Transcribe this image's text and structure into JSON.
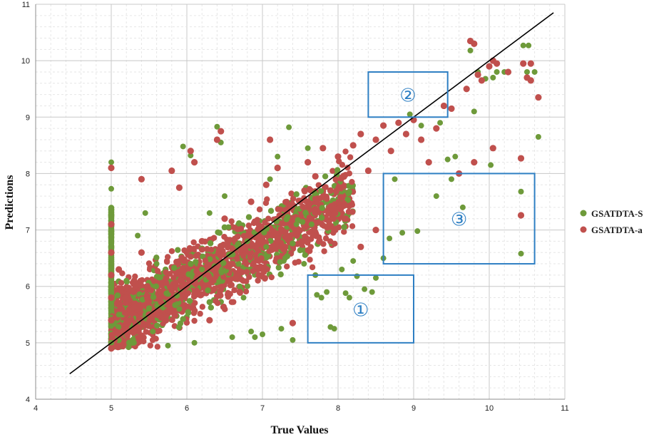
{
  "chart_data": {
    "type": "scatter",
    "xlabel": "True Values",
    "ylabel": "Predictions",
    "xlim": [
      4,
      11
    ],
    "ylim": [
      4,
      11
    ],
    "xticks": [
      "4",
      "5",
      "6",
      "7",
      "8",
      "9",
      "10",
      "11"
    ],
    "yticks": [
      "4",
      "5",
      "6",
      "7",
      "8",
      "9",
      "10",
      "11"
    ],
    "grid": true,
    "minor_grid": true,
    "legend_position": "right",
    "reference_line": {
      "x": [
        4.45,
        10.85
      ],
      "y": [
        4.45,
        10.85
      ],
      "color": "#000000"
    },
    "series": [
      {
        "name": "GSATDTA-S",
        "color": "#6e9a3a",
        "points": [
          [
            5.0,
            8.2
          ],
          [
            5.0,
            7.73
          ],
          [
            5.0,
            7.25
          ],
          [
            5.0,
            6.95
          ],
          [
            5.0,
            6.5
          ],
          [
            5.0,
            6.1
          ],
          [
            5.0,
            5.7
          ],
          [
            5.0,
            5.3
          ],
          [
            5.0,
            5.0
          ],
          [
            5.1,
            5.5
          ],
          [
            5.2,
            6.1
          ],
          [
            5.3,
            5.0
          ],
          [
            5.35,
            6.9
          ],
          [
            5.45,
            7.3
          ],
          [
            5.55,
            5.2
          ],
          [
            5.6,
            6.4
          ],
          [
            5.75,
            4.95
          ],
          [
            5.9,
            5.6
          ],
          [
            5.95,
            8.48
          ],
          [
            6.05,
            8.32
          ],
          [
            6.1,
            5.0
          ],
          [
            6.2,
            6.3
          ],
          [
            6.3,
            7.3
          ],
          [
            6.4,
            8.83
          ],
          [
            6.45,
            8.55
          ],
          [
            6.5,
            7.6
          ],
          [
            6.55,
            7.05
          ],
          [
            6.6,
            5.1
          ],
          [
            6.7,
            6.0
          ],
          [
            6.75,
            5.8
          ],
          [
            6.8,
            6.8
          ],
          [
            6.85,
            5.2
          ],
          [
            6.9,
            5.1
          ],
          [
            7.0,
            5.15
          ],
          [
            7.05,
            6.7
          ],
          [
            7.1,
            7.9
          ],
          [
            7.2,
            8.3
          ],
          [
            7.25,
            5.25
          ],
          [
            7.3,
            6.5
          ],
          [
            7.35,
            8.82
          ],
          [
            7.4,
            5.05
          ],
          [
            7.45,
            7.1
          ],
          [
            7.55,
            6.4
          ],
          [
            7.6,
            8.45
          ],
          [
            7.65,
            7.1
          ],
          [
            7.7,
            6.2
          ],
          [
            7.72,
            5.85
          ],
          [
            7.78,
            5.8
          ],
          [
            7.85,
            5.9
          ],
          [
            7.9,
            5.28
          ],
          [
            7.95,
            5.25
          ],
          [
            8.05,
            6.3
          ],
          [
            8.1,
            5.88
          ],
          [
            8.15,
            5.8
          ],
          [
            8.2,
            6.45
          ],
          [
            8.25,
            6.18
          ],
          [
            8.35,
            5.95
          ],
          [
            8.45,
            5.9
          ],
          [
            8.5,
            6.15
          ],
          [
            8.6,
            6.5
          ],
          [
            8.68,
            6.85
          ],
          [
            8.75,
            7.9
          ],
          [
            8.85,
            6.95
          ],
          [
            8.95,
            9.05
          ],
          [
            9.05,
            6.98
          ],
          [
            9.1,
            8.85
          ],
          [
            9.3,
            7.6
          ],
          [
            9.35,
            8.9
          ],
          [
            9.45,
            8.25
          ],
          [
            9.5,
            7.9
          ],
          [
            9.55,
            8.3
          ],
          [
            9.65,
            7.4
          ],
          [
            9.75,
            10.18
          ],
          [
            9.8,
            9.1
          ],
          [
            9.85,
            9.8
          ],
          [
            9.95,
            9.68
          ],
          [
            10.05,
            9.7
          ],
          [
            10.1,
            9.8
          ],
          [
            10.2,
            9.8
          ],
          [
            10.45,
            10.27
          ],
          [
            10.5,
            9.8
          ],
          [
            10.52,
            10.27
          ],
          [
            10.6,
            9.8
          ],
          [
            10.42,
            7.68
          ],
          [
            10.42,
            6.58
          ],
          [
            10.65,
            8.65
          ],
          [
            10.02,
            8.15
          ]
        ]
      },
      {
        "name": "GSATDTA-a",
        "color": "#c0504d",
        "points": [
          [
            5.0,
            8.1
          ],
          [
            5.0,
            7.1
          ],
          [
            5.0,
            6.6
          ],
          [
            5.0,
            6.2
          ],
          [
            5.0,
            5.8
          ],
          [
            5.0,
            5.4
          ],
          [
            5.0,
            4.9
          ],
          [
            5.1,
            6.3
          ],
          [
            5.2,
            5.8
          ],
          [
            5.3,
            5.2
          ],
          [
            5.4,
            6.6
          ],
          [
            5.4,
            7.9
          ],
          [
            5.5,
            5.5
          ],
          [
            5.65,
            5.9
          ],
          [
            5.8,
            8.05
          ],
          [
            5.9,
            7.75
          ],
          [
            6.05,
            8.4
          ],
          [
            6.1,
            8.2
          ],
          [
            6.2,
            6.8
          ],
          [
            6.3,
            5.4
          ],
          [
            6.4,
            8.6
          ],
          [
            6.45,
            8.75
          ],
          [
            6.5,
            7.2
          ],
          [
            6.6,
            6.4
          ],
          [
            6.7,
            5.9
          ],
          [
            6.85,
            7.5
          ],
          [
            6.95,
            6.2
          ],
          [
            7.05,
            7.8
          ],
          [
            7.1,
            8.6
          ],
          [
            7.2,
            8.1
          ],
          [
            7.3,
            6.7
          ],
          [
            7.4,
            5.35
          ],
          [
            7.5,
            7.5
          ],
          [
            7.6,
            8.2
          ],
          [
            7.7,
            7.95
          ],
          [
            7.8,
            8.45
          ],
          [
            7.9,
            7.7
          ],
          [
            8.0,
            8.3
          ],
          [
            8.1,
            7.2
          ],
          [
            8.2,
            8.5
          ],
          [
            8.3,
            8.7
          ],
          [
            8.4,
            8.05
          ],
          [
            8.5,
            8.6
          ],
          [
            8.6,
            8.85
          ],
          [
            8.7,
            8.4
          ],
          [
            8.8,
            8.9
          ],
          [
            8.9,
            8.7
          ],
          [
            9.0,
            8.95
          ],
          [
            9.1,
            8.6
          ],
          [
            9.2,
            8.2
          ],
          [
            9.3,
            8.8
          ],
          [
            9.4,
            9.2
          ],
          [
            9.5,
            9.15
          ],
          [
            9.6,
            8.0
          ],
          [
            9.7,
            9.5
          ],
          [
            9.75,
            10.35
          ],
          [
            9.8,
            10.3
          ],
          [
            9.85,
            9.75
          ],
          [
            9.9,
            9.65
          ],
          [
            10.0,
            9.9
          ],
          [
            10.05,
            10.0
          ],
          [
            10.1,
            9.95
          ],
          [
            10.25,
            9.8
          ],
          [
            10.45,
            9.95
          ],
          [
            10.5,
            9.7
          ],
          [
            10.55,
            9.95
          ],
          [
            10.55,
            9.65
          ],
          [
            10.65,
            9.35
          ],
          [
            10.42,
            8.27
          ],
          [
            10.05,
            8.45
          ],
          [
            10.42,
            7.26
          ],
          [
            9.8,
            8.2
          ],
          [
            8.5,
            7.0
          ],
          [
            8.3,
            6.7
          ]
        ]
      }
    ],
    "annotations": [
      {
        "label": "①",
        "x0": 7.6,
        "x1": 9.0,
        "y0": 5.0,
        "y1": 6.2,
        "color": "#2e7fc3"
      },
      {
        "label": "②",
        "x0": 8.4,
        "x1": 9.45,
        "y0": 9.0,
        "y1": 9.8,
        "color": "#2e7fc3"
      },
      {
        "label": "③",
        "x0": 8.6,
        "x1": 10.6,
        "y0": 6.4,
        "y1": 8.0,
        "color": "#2e7fc3"
      }
    ]
  }
}
